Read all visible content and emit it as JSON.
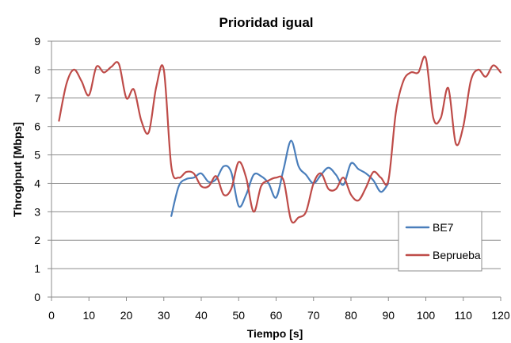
{
  "chart_data": {
    "type": "line",
    "title": "Prioridad igual",
    "xlabel": "Tiempo [s]",
    "ylabel": "Throghput [Mbps]",
    "xlim": [
      0,
      120
    ],
    "ylim": [
      0,
      9
    ],
    "xticks": [
      0,
      10,
      20,
      30,
      40,
      50,
      60,
      70,
      80,
      90,
      100,
      110,
      120
    ],
    "yticks": [
      0,
      1,
      2,
      3,
      4,
      5,
      6,
      7,
      8,
      9
    ],
    "grid": "horizontal",
    "legend_position": "bottom-right",
    "series": [
      {
        "name": "BE7",
        "color": "#4a7ebb",
        "x": [
          32,
          34,
          36,
          38,
          40,
          42,
          44,
          46,
          48,
          50,
          52,
          54,
          56,
          58,
          60,
          62,
          64,
          66,
          68,
          70,
          72,
          74,
          76,
          78,
          80,
          82,
          84,
          86,
          88,
          90
        ],
        "y": [
          2.85,
          3.9,
          4.15,
          4.2,
          4.35,
          4.05,
          4.15,
          4.6,
          4.4,
          3.2,
          3.6,
          4.3,
          4.25,
          4.0,
          3.5,
          4.5,
          5.5,
          4.6,
          4.3,
          4.0,
          4.3,
          4.55,
          4.3,
          3.95,
          4.7,
          4.5,
          4.35,
          4.1,
          3.7,
          4.0
        ]
      },
      {
        "name": "Beprueba",
        "color": "#be4b48",
        "x": [
          2,
          4,
          6,
          8,
          10,
          12,
          14,
          16,
          18,
          20,
          22,
          24,
          26,
          28,
          30,
          32,
          34,
          36,
          38,
          40,
          42,
          44,
          46,
          48,
          50,
          52,
          54,
          56,
          58,
          60,
          62,
          64,
          66,
          68,
          70,
          72,
          74,
          76,
          78,
          80,
          82,
          84,
          86,
          88,
          90,
          92,
          94,
          96,
          98,
          100,
          102,
          104,
          106,
          108,
          110,
          112,
          114,
          116,
          118,
          120
        ],
        "y": [
          6.2,
          7.5,
          8.0,
          7.6,
          7.1,
          8.1,
          7.9,
          8.1,
          8.2,
          7.0,
          7.3,
          6.2,
          5.8,
          7.4,
          8.0,
          4.6,
          4.2,
          4.4,
          4.35,
          3.9,
          3.9,
          4.25,
          3.6,
          3.8,
          4.75,
          4.2,
          3.0,
          3.9,
          4.1,
          4.2,
          4.1,
          2.7,
          2.8,
          3.0,
          4.0,
          4.35,
          3.8,
          3.8,
          4.2,
          3.6,
          3.4,
          3.85,
          4.4,
          4.2,
          4.1,
          6.5,
          7.6,
          7.9,
          7.9,
          8.4,
          6.3,
          6.3,
          7.35,
          5.4,
          6.0,
          7.6,
          8.0,
          7.75,
          8.15,
          7.9
        ]
      }
    ]
  }
}
